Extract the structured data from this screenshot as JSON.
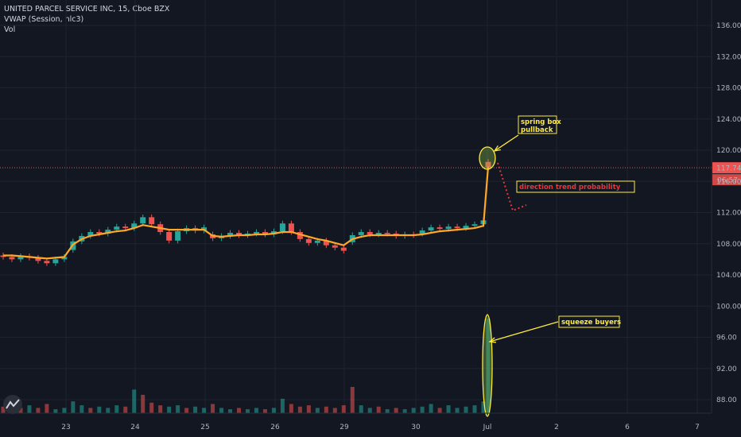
{
  "legend": {
    "symbol_line": "UNITED PARCEL SERVICE INC, 15, Cboe BZX",
    "indicator_line": "VWAP (Session, hlc3)",
    "volume_line": "Vol"
  },
  "colors": {
    "background": "#131722",
    "grid": "#1f2330",
    "up": "#26a69a",
    "down": "#ef5350",
    "vwap": "#ffa726",
    "annotation_box": "#ffeb3b",
    "annotation_red": "#e53935"
  },
  "chart_data": {
    "type": "candlestick",
    "ylim": [
      86,
      137.5
    ],
    "y_ticks": [
      "136.00",
      "132.00",
      "128.00",
      "124.00",
      "120.00",
      "116.00",
      "112.00",
      "108.00",
      "104.00",
      "100.00",
      "96.00",
      "92.00",
      "88.00"
    ],
    "x_ticks": [
      "23",
      "24",
      "25",
      "26",
      "29",
      "30",
      "Jul",
      "2",
      "6",
      "7"
    ],
    "last_price": {
      "value": 117.74,
      "label": "117.74",
      "countdown": "06:57"
    },
    "price_series": [
      {
        "day": "22",
        "o": 106.5,
        "c": 106.3
      },
      {
        "day": "22",
        "o": 106.3,
        "c": 106.0
      },
      {
        "day": "22",
        "o": 106.0,
        "c": 106.4
      },
      {
        "day": "22",
        "o": 106.4,
        "c": 106.2
      },
      {
        "day": "22",
        "o": 106.2,
        "c": 105.8
      },
      {
        "day": "22",
        "o": 105.8,
        "c": 105.5
      },
      {
        "day": "22",
        "o": 105.5,
        "c": 106.0
      },
      {
        "day": "22",
        "o": 106.0,
        "c": 106.3
      },
      {
        "day": "23",
        "o": 107.2,
        "c": 108.3
      },
      {
        "day": "23",
        "o": 108.3,
        "c": 109.0
      },
      {
        "day": "23",
        "o": 109.0,
        "c": 109.5
      },
      {
        "day": "23",
        "o": 109.5,
        "c": 109.3
      },
      {
        "day": "23",
        "o": 109.3,
        "c": 109.8
      },
      {
        "day": "23",
        "o": 109.8,
        "c": 110.2
      },
      {
        "day": "23",
        "o": 110.2,
        "c": 110.0
      },
      {
        "day": "23",
        "o": 110.0,
        "c": 110.6
      },
      {
        "day": "24",
        "o": 110.6,
        "c": 111.4
      },
      {
        "day": "24",
        "o": 111.4,
        "c": 110.5
      },
      {
        "day": "24",
        "o": 110.5,
        "c": 109.5
      },
      {
        "day": "24",
        "o": 109.5,
        "c": 108.4
      },
      {
        "day": "24",
        "o": 108.4,
        "c": 109.6
      },
      {
        "day": "24",
        "o": 109.6,
        "c": 110.0
      },
      {
        "day": "24",
        "o": 110.0,
        "c": 109.7
      },
      {
        "day": "24",
        "o": 109.7,
        "c": 110.1
      },
      {
        "day": "25",
        "o": 109.2,
        "c": 108.7
      },
      {
        "day": "25",
        "o": 108.7,
        "c": 109.0
      },
      {
        "day": "25",
        "o": 109.0,
        "c": 109.4
      },
      {
        "day": "25",
        "o": 109.4,
        "c": 109.1
      },
      {
        "day": "25",
        "o": 109.1,
        "c": 109.3
      },
      {
        "day": "25",
        "o": 109.3,
        "c": 109.5
      },
      {
        "day": "25",
        "o": 109.5,
        "c": 109.2
      },
      {
        "day": "25",
        "o": 109.2,
        "c": 109.6
      },
      {
        "day": "26",
        "o": 109.6,
        "c": 110.6
      },
      {
        "day": "26",
        "o": 110.6,
        "c": 109.5
      },
      {
        "day": "26",
        "o": 109.5,
        "c": 108.6
      },
      {
        "day": "26",
        "o": 108.6,
        "c": 108.1
      },
      {
        "day": "26",
        "o": 108.1,
        "c": 108.4
      },
      {
        "day": "26",
        "o": 108.4,
        "c": 107.8
      },
      {
        "day": "26",
        "o": 107.8,
        "c": 107.5
      },
      {
        "day": "26",
        "o": 107.5,
        "c": 107.1
      },
      {
        "day": "29",
        "o": 108.2,
        "c": 109.1
      },
      {
        "day": "29",
        "o": 109.1,
        "c": 109.5
      },
      {
        "day": "29",
        "o": 109.5,
        "c": 109.2
      },
      {
        "day": "29",
        "o": 109.2,
        "c": 109.4
      },
      {
        "day": "29",
        "o": 109.4,
        "c": 109.3
      },
      {
        "day": "29",
        "o": 109.3,
        "c": 109.0
      },
      {
        "day": "29",
        "o": 109.0,
        "c": 109.2
      },
      {
        "day": "29",
        "o": 109.2,
        "c": 109.1
      },
      {
        "day": "30",
        "o": 109.3,
        "c": 109.7
      },
      {
        "day": "30",
        "o": 109.7,
        "c": 110.1
      },
      {
        "day": "30",
        "o": 110.1,
        "c": 109.9
      },
      {
        "day": "30",
        "o": 109.9,
        "c": 110.2
      },
      {
        "day": "30",
        "o": 110.2,
        "c": 110.0
      },
      {
        "day": "30",
        "o": 110.0,
        "c": 110.3
      },
      {
        "day": "30",
        "o": 110.3,
        "c": 110.5
      },
      {
        "day": "30",
        "o": 110.5,
        "c": 111.0
      },
      {
        "day": "Jul",
        "o": 118.5,
        "c": 117.74
      }
    ],
    "vwap_series": [
      106.5,
      106.5,
      106.4,
      106.3,
      106.2,
      106.1,
      106.2,
      106.3,
      107.9,
      108.6,
      109.0,
      109.2,
      109.4,
      109.6,
      109.7,
      110.0,
      110.4,
      110.2,
      110.0,
      109.8,
      109.8,
      109.8,
      109.8,
      109.8,
      109.0,
      108.9,
      109.0,
      109.1,
      109.1,
      109.2,
      109.2,
      109.3,
      109.5,
      109.5,
      109.2,
      108.9,
      108.6,
      108.4,
      108.1,
      107.8,
      108.6,
      108.9,
      109.1,
      109.1,
      109.1,
      109.1,
      109.1,
      109.1,
      109.2,
      109.4,
      109.6,
      109.7,
      109.8,
      109.9,
      110.0,
      110.3,
      117.9
    ],
    "volume_series": [
      {
        "v": 0.25,
        "up": false
      },
      {
        "v": 0.15,
        "up": true
      },
      {
        "v": 0.2,
        "up": false
      },
      {
        "v": 0.3,
        "up": true
      },
      {
        "v": 0.2,
        "up": false
      },
      {
        "v": 0.35,
        "up": false
      },
      {
        "v": 0.15,
        "up": true
      },
      {
        "v": 0.2,
        "up": true
      },
      {
        "v": 0.45,
        "up": true
      },
      {
        "v": 0.3,
        "up": true
      },
      {
        "v": 0.2,
        "up": false
      },
      {
        "v": 0.25,
        "up": true
      },
      {
        "v": 0.2,
        "up": true
      },
      {
        "v": 0.3,
        "up": true
      },
      {
        "v": 0.25,
        "up": false
      },
      {
        "v": 0.9,
        "up": true
      },
      {
        "v": 0.7,
        "up": false
      },
      {
        "v": 0.4,
        "up": false
      },
      {
        "v": 0.3,
        "up": false
      },
      {
        "v": 0.25,
        "up": true
      },
      {
        "v": 0.3,
        "up": true
      },
      {
        "v": 0.2,
        "up": false
      },
      {
        "v": 0.25,
        "up": true
      },
      {
        "v": 0.2,
        "up": true
      },
      {
        "v": 0.35,
        "up": false
      },
      {
        "v": 0.2,
        "up": true
      },
      {
        "v": 0.15,
        "up": true
      },
      {
        "v": 0.2,
        "up": false
      },
      {
        "v": 0.15,
        "up": true
      },
      {
        "v": 0.2,
        "up": true
      },
      {
        "v": 0.15,
        "up": false
      },
      {
        "v": 0.2,
        "up": true
      },
      {
        "v": 0.55,
        "up": true
      },
      {
        "v": 0.35,
        "up": false
      },
      {
        "v": 0.25,
        "up": false
      },
      {
        "v": 0.3,
        "up": false
      },
      {
        "v": 0.2,
        "up": true
      },
      {
        "v": 0.25,
        "up": false
      },
      {
        "v": 0.2,
        "up": false
      },
      {
        "v": 0.3,
        "up": false
      },
      {
        "v": 1.0,
        "up": false
      },
      {
        "v": 0.3,
        "up": true
      },
      {
        "v": 0.2,
        "up": true
      },
      {
        "v": 0.25,
        "up": false
      },
      {
        "v": 0.15,
        "up": true
      },
      {
        "v": 0.2,
        "up": false
      },
      {
        "v": 0.15,
        "up": true
      },
      {
        "v": 0.2,
        "up": true
      },
      {
        "v": 0.25,
        "up": true
      },
      {
        "v": 0.35,
        "up": true
      },
      {
        "v": 0.2,
        "up": false
      },
      {
        "v": 0.3,
        "up": true
      },
      {
        "v": 0.2,
        "up": true
      },
      {
        "v": 0.25,
        "up": true
      },
      {
        "v": 0.3,
        "up": true
      },
      {
        "v": 0.45,
        "up": true
      },
      {
        "v": 3.6,
        "up": true
      }
    ],
    "annotations": [
      {
        "text_lines": [
          "spring box",
          "pullback"
        ],
        "style": "yellow-box",
        "target": "Jul-high"
      },
      {
        "text_lines": [
          "direction trend probability"
        ],
        "style": "red-box",
        "target": "projection"
      },
      {
        "text_lines": [
          "squeeze buyers"
        ],
        "style": "yellow-box",
        "target": "Jul-volume"
      }
    ]
  }
}
